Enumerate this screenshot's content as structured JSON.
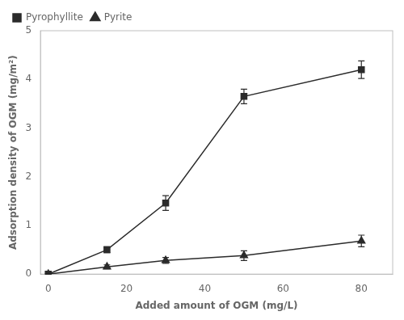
{
  "chart_data": {
    "type": "line",
    "xlabel": "Added amount of OGM (mg/L)",
    "ylabel": "Adsorption density of OGM (mg/m²)",
    "x": [
      0,
      15,
      30,
      50,
      80
    ],
    "series": [
      {
        "name": "Pyrophyllite",
        "color": "#2b2b2b",
        "marker": "square",
        "values": [
          0.0,
          0.5,
          1.46,
          3.65,
          4.2
        ],
        "yerr": [
          0.0,
          0.06,
          0.15,
          0.15,
          0.18
        ]
      },
      {
        "name": "Pyrite",
        "color": "#2b2b2b",
        "marker": "triangle",
        "values": [
          0.0,
          0.15,
          0.28,
          0.38,
          0.68
        ],
        "yerr": [
          0.0,
          0.04,
          0.06,
          0.1,
          0.12
        ]
      }
    ],
    "xlim": [
      -2,
      88
    ],
    "xticks": [
      0,
      20,
      40,
      60,
      80
    ],
    "ylim": [
      0,
      5
    ],
    "yticks": [
      0,
      1,
      2,
      3,
      4,
      5
    ],
    "grid": false,
    "legend": "upper left"
  }
}
